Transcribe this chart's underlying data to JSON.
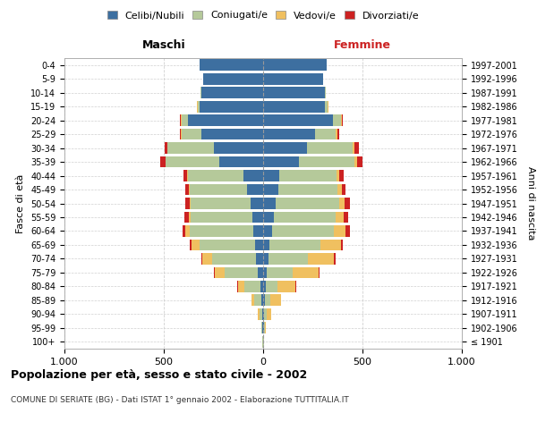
{
  "age_groups": [
    "100+",
    "95-99",
    "90-94",
    "85-89",
    "80-84",
    "75-79",
    "70-74",
    "65-69",
    "60-64",
    "55-59",
    "50-54",
    "45-49",
    "40-44",
    "35-39",
    "30-34",
    "25-29",
    "20-24",
    "15-19",
    "10-14",
    "5-9",
    "0-4"
  ],
  "birth_years": [
    "≤ 1901",
    "1902-1906",
    "1907-1911",
    "1912-1916",
    "1917-1921",
    "1922-1926",
    "1927-1931",
    "1932-1936",
    "1937-1941",
    "1942-1946",
    "1947-1951",
    "1952-1956",
    "1957-1961",
    "1962-1966",
    "1967-1971",
    "1972-1976",
    "1977-1981",
    "1982-1986",
    "1987-1991",
    "1992-1996",
    "1997-2001"
  ],
  "males": {
    "celibi": [
      2,
      3,
      5,
      8,
      15,
      25,
      35,
      40,
      50,
      55,
      65,
      80,
      100,
      220,
      250,
      310,
      380,
      320,
      310,
      300,
      320
    ],
    "coniugati": [
      2,
      5,
      15,
      35,
      80,
      170,
      220,
      280,
      320,
      310,
      300,
      290,
      280,
      270,
      230,
      100,
      30,
      10,
      5,
      2,
      1
    ],
    "vedovi": [
      0,
      2,
      5,
      15,
      30,
      50,
      50,
      40,
      20,
      10,
      5,
      3,
      3,
      3,
      2,
      5,
      5,
      2,
      0,
      0,
      0
    ],
    "divorziati": [
      0,
      0,
      0,
      2,
      4,
      5,
      5,
      8,
      15,
      20,
      20,
      20,
      18,
      25,
      15,
      5,
      3,
      2,
      0,
      0,
      0
    ]
  },
  "females": {
    "nubili": [
      2,
      3,
      5,
      8,
      12,
      20,
      25,
      30,
      45,
      55,
      65,
      75,
      80,
      180,
      220,
      260,
      350,
      310,
      310,
      300,
      320
    ],
    "coniugate": [
      2,
      5,
      15,
      30,
      60,
      130,
      200,
      260,
      310,
      310,
      320,
      300,
      290,
      280,
      230,
      105,
      40,
      15,
      5,
      2,
      1
    ],
    "vedove": [
      2,
      5,
      20,
      50,
      90,
      130,
      130,
      100,
      60,
      40,
      25,
      20,
      15,
      15,
      10,
      10,
      5,
      2,
      0,
      0,
      0
    ],
    "divorziate": [
      0,
      0,
      0,
      2,
      5,
      5,
      8,
      10,
      20,
      25,
      25,
      20,
      20,
      25,
      20,
      8,
      5,
      2,
      0,
      0,
      0
    ]
  },
  "colors": {
    "celibi": "#3d6fa0",
    "coniugati": "#b5c99a",
    "vedovi": "#f0c060",
    "divorziati": "#cc2222"
  },
  "title": "Popolazione per età, sesso e stato civile - 2002",
  "subtitle": "COMUNE DI SERIATE (BG) - Dati ISTAT 1° gennaio 2002 - Elaborazione TUTTITALIA.IT",
  "xlabel_left": "Maschi",
  "xlabel_right": "Femmine",
  "ylabel_left": "Fasce di età",
  "ylabel_right": "Anni di nascita",
  "xlim": 1000,
  "legend_labels": [
    "Celibi/Nubili",
    "Coniugati/e",
    "Vedovi/e",
    "Divorziati/e"
  ],
  "background_color": "#ffffff",
  "grid_color": "#cccccc"
}
